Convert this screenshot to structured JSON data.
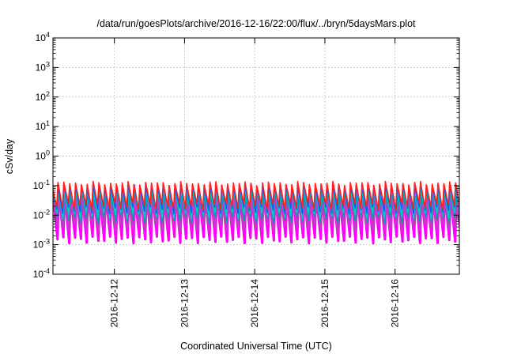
{
  "chart_data": {
    "type": "line",
    "title": "/data/run/goesPlots/archive/2016-12-16/22:00/flux/../bryn/5daysMars.plot",
    "xlabel": "Coordinated Universal Time (UTC)",
    "ylabel": "cSv/day",
    "x_range": [
      "2016-12-11T03:00",
      "2016-12-16T22:00"
    ],
    "x_ticks": [
      "2016-12-12",
      "2016-12-13",
      "2016-12-14",
      "2016-12-15",
      "2016-12-16"
    ],
    "y_scale": "log",
    "ylim": [
      0.0001,
      10000
    ],
    "y_ticks": [
      {
        "base": "10",
        "exp": "-4"
      },
      {
        "base": "10",
        "exp": "-3"
      },
      {
        "base": "10",
        "exp": "-2"
      },
      {
        "base": "10",
        "exp": "-1"
      },
      {
        "base": "10",
        "exp": "0"
      },
      {
        "base": "10",
        "exp": "1"
      },
      {
        "base": "10",
        "exp": "2"
      },
      {
        "base": "10",
        "exp": "3"
      },
      {
        "base": "10",
        "exp": "4"
      }
    ],
    "grid": true,
    "legend": "none",
    "sawtooth_period_hours": 2.0,
    "series": [
      {
        "color": "#ff00ff",
        "peak": 0.05,
        "trough": 0.0015
      },
      {
        "color": "#cc33cc",
        "peak": 0.035,
        "trough": 0.004
      },
      {
        "color": "#00a0a0",
        "peak": 0.06,
        "trough": 0.007
      },
      {
        "color": "#00cccc",
        "peak": 0.085,
        "trough": 0.01
      },
      {
        "color": "#2050ff",
        "peak": 0.1,
        "trough": 0.015
      },
      {
        "color": "#ff2020",
        "peak": 0.12,
        "trough": 0.02
      }
    ]
  }
}
